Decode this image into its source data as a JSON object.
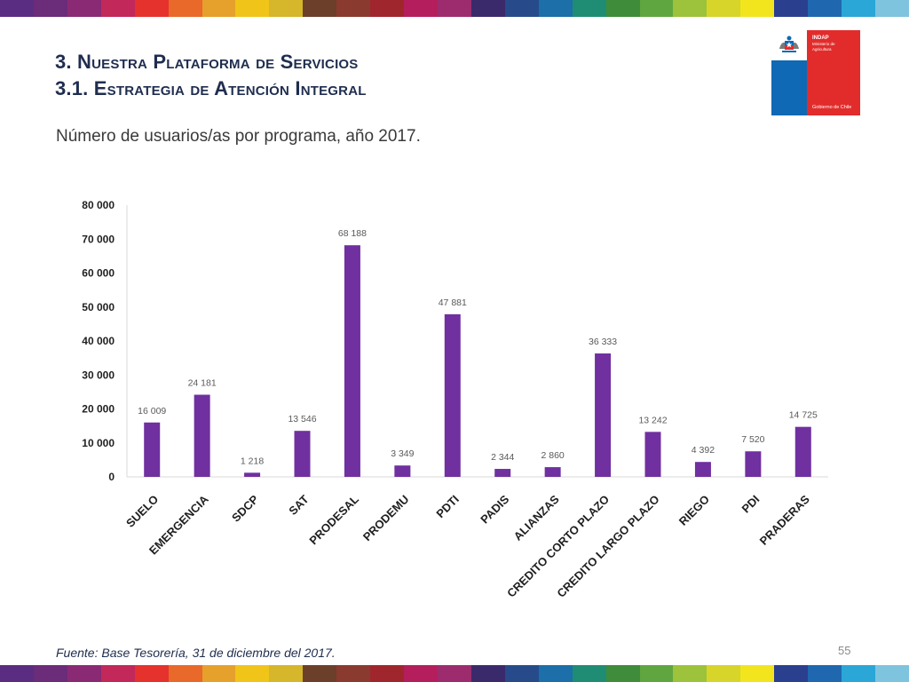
{
  "header": {
    "title_line1": "3. Nuestra Plataforma de Servicios",
    "title_line2": "3.1. Estrategia de Atención Integral"
  },
  "logo": {
    "org": "INDAP",
    "ministry": "Ministerio de Agricultura",
    "government": "Gobierno de Chile",
    "colors": {
      "blue": "#0f69b4",
      "red": "#e22c2c"
    }
  },
  "subtitle": "Número de usuarios/as por programa, año 2017.",
  "stripe_colors": [
    "#5a2d82",
    "#6b2c7a",
    "#8a2a74",
    "#c2285a",
    "#e5322d",
    "#e8692a",
    "#e6a02c",
    "#f0c419",
    "#d6b62a",
    "#6b3f2a",
    "#8a3a2e",
    "#a0262e",
    "#b51e5c",
    "#9c2c6e",
    "#3a2a6b",
    "#274b8a",
    "#1c6fa8",
    "#1f8d74",
    "#3f8c3a",
    "#5fa640",
    "#9cc33b",
    "#d7d52a",
    "#f2e51e",
    "#2b3f8f",
    "#1f68b0",
    "#2aa7d6",
    "#7fc4df"
  ],
  "chart_data": {
    "type": "bar",
    "categories": [
      "SUELO",
      "EMERGENCIA",
      "SDCP",
      "SAT",
      "PRODESAL",
      "PRODEMU",
      "PDTI",
      "PADIS",
      "ALIANZAS",
      "CREDITO CORTO PLAZO",
      "CREDITO LARGO PLAZO",
      "RIEGO",
      "PDI",
      "PRADERAS"
    ],
    "values": [
      16009,
      24181,
      1218,
      13546,
      68188,
      3349,
      47881,
      2344,
      2860,
      36333,
      13242,
      4392,
      7520,
      14725
    ],
    "value_labels": [
      "16 009",
      "24 181",
      "1 218",
      "13 546",
      "68 188",
      "3 349",
      "47 881",
      "2 344",
      "2 860",
      "36 333",
      "13 242",
      "4 392",
      "7 520",
      "14 725"
    ],
    "yticks": [
      0,
      10000,
      20000,
      30000,
      40000,
      50000,
      60000,
      70000,
      80000
    ],
    "ytick_labels": [
      "0",
      "10 000",
      "20 000",
      "30 000",
      "40 000",
      "50 000",
      "60 000",
      "70 000",
      "80 000"
    ],
    "ylim": [
      0,
      80000
    ],
    "bar_color": "#7030a0",
    "grid": false,
    "legend": "none"
  },
  "footer": {
    "source": "Fuente: Base Tesorería, 31 de diciembre del 2017.",
    "page": "55"
  }
}
